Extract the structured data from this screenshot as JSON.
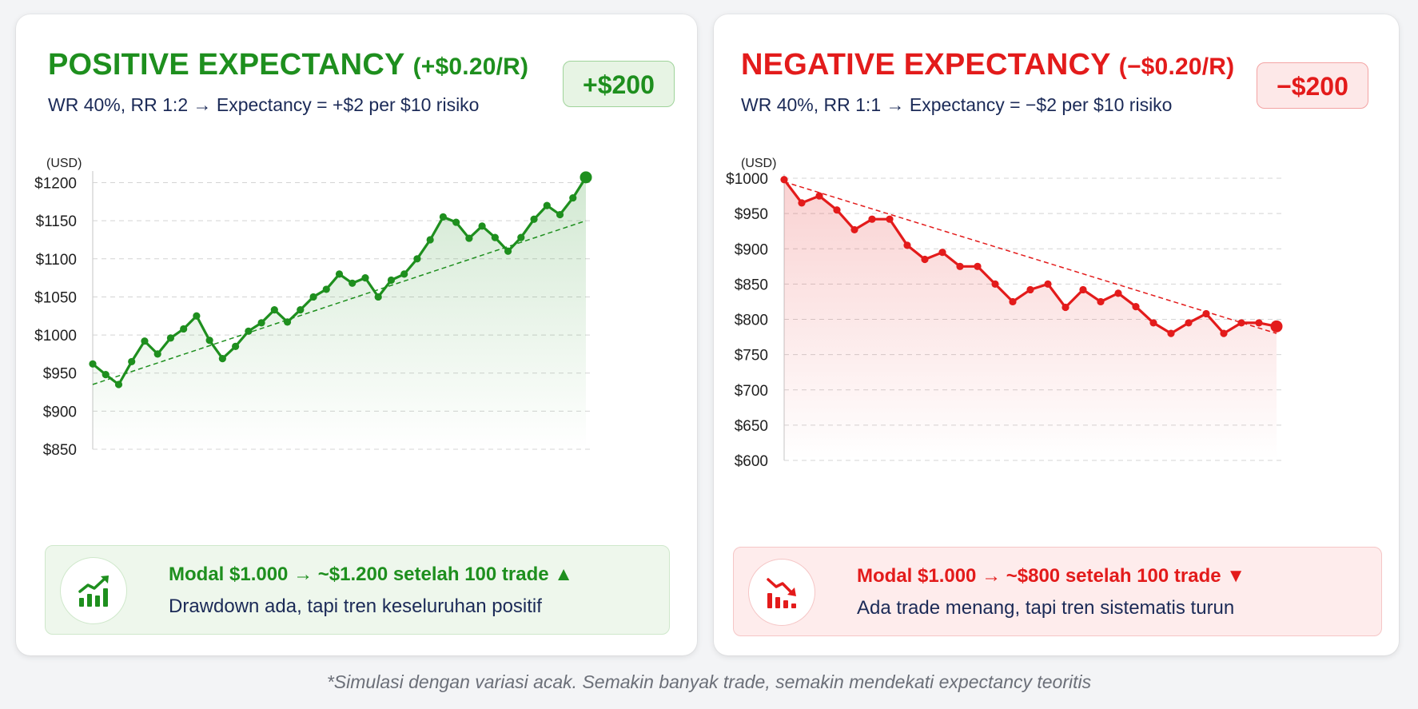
{
  "left_panel": {
    "title": "POSITIVE EXPECTANCY",
    "title_value": "(+$0.20/R)",
    "subtitle": "WR 40%, RR 1:2 → Expectancy = +$2 per $10 risiko",
    "badge": "+$200",
    "unit_label": "(USD)",
    "summary_headline": "Modal $1.000 → ~$1.200 setelah 100 trade ▲",
    "summary_detail": "Drawdown ada, tapi tren keseluruhan positif",
    "icon": "chart-up-icon",
    "accent_color": "#1e8f1e"
  },
  "right_panel": {
    "title": "NEGATIVE EXPECTANCY",
    "title_value": "(−$0.20/R)",
    "subtitle": "WR 40%, RR 1:1 → Expectancy = −$2 per $10 risiko",
    "badge": "−$200",
    "unit_label": "(USD)",
    "summary_headline": "Modal $1.000 → ~$800 setelah 100 trade ▼",
    "summary_detail": "Ada trade menang, tapi tren sistematis turun",
    "icon": "chart-down-icon",
    "accent_color": "#e31b1b"
  },
  "footnote": "*Simulasi dengan variasi acak. Semakin banyak trade, semakin mendekati expectancy teoritis",
  "chart_data": [
    {
      "type": "line",
      "ylabel": "(USD)",
      "ylim": [
        850,
        1210
      ],
      "yticks": [
        850,
        900,
        950,
        1000,
        1050,
        1100,
        1150,
        1200
      ],
      "ytick_labels": [
        "$850",
        "$900",
        "$950",
        "$1000",
        "$1050",
        "$1100",
        "$1150",
        "$1200"
      ],
      "grid": true,
      "color": "#1e8f1e",
      "trend": [
        935,
        1150
      ],
      "series": [
        {
          "values": [
            962,
            948,
            935,
            965,
            992,
            975,
            996,
            1008,
            1025,
            993,
            969,
            985,
            1005,
            1016,
            1033,
            1017,
            1033,
            1050,
            1060,
            1080,
            1068,
            1075,
            1050,
            1072,
            1080,
            1100,
            1125,
            1155,
            1148,
            1127,
            1143,
            1128,
            1110,
            1128,
            1152,
            1170,
            1158,
            1180,
            1207
          ]
        }
      ]
    },
    {
      "type": "line",
      "ylabel": "(USD)",
      "ylim": [
        600,
        1000
      ],
      "yticks": [
        600,
        650,
        700,
        750,
        800,
        850,
        900,
        950,
        1000
      ],
      "ytick_labels": [
        "$600",
        "$650",
        "$700",
        "$750",
        "$800",
        "$850",
        "$900",
        "$950",
        "$1000"
      ],
      "grid": true,
      "color": "#e31b1b",
      "trend": [
        995,
        780
      ],
      "series": [
        {
          "values": [
            998,
            965,
            975,
            955,
            927,
            942,
            942,
            905,
            885,
            895,
            875,
            875,
            850,
            825,
            842,
            850,
            817,
            842,
            825,
            837,
            818,
            795,
            780,
            795,
            808,
            780,
            795,
            795,
            790
          ]
        }
      ]
    }
  ]
}
